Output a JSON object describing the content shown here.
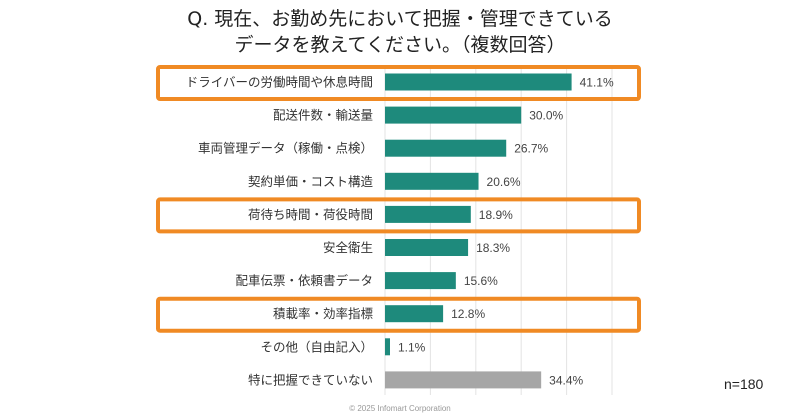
{
  "chart_data": {
    "type": "bar",
    "orientation": "horizontal",
    "title_lines": [
      "Q. 現在、お勤め先において把握・管理できている",
      "データを教えてください。（複数回答）"
    ],
    "categories": [
      "ドライバーの労働時間や休息時間",
      "配送件数・輸送量",
      "車両管理データ（稼働・点検）",
      "契約単価・コスト構造",
      "荷待ち時間・荷役時間",
      "安全衛生",
      "配車伝票・依頼書データ",
      "積載率・効率指標",
      "その他（自由記入）",
      "特に把握できていない"
    ],
    "values": [
      41.1,
      30.0,
      26.7,
      20.6,
      18.9,
      18.3,
      15.6,
      12.8,
      1.1,
      34.4
    ],
    "data_labels": [
      "41.1%",
      "30.0%",
      "26.7%",
      "20.6%",
      "18.9%",
      "18.3%",
      "15.6%",
      "12.8%",
      "1.1%",
      "34.4%"
    ],
    "unit": "%",
    "xlim": [
      0,
      50
    ],
    "grid": true,
    "highlighted_categories": [
      "ドライバーの労働時間や休息時間",
      "荷待ち時間・荷役時間",
      "積載率・効率指標"
    ],
    "colors": {
      "bar": "#1e8a7c",
      "bar_none": "#a6a6a6",
      "highlight": "#f08a24",
      "grid": "#e3e3e3"
    },
    "sample_size": "n=180"
  },
  "footer": {
    "copyright": "© 2025 Infomart Corporation"
  }
}
